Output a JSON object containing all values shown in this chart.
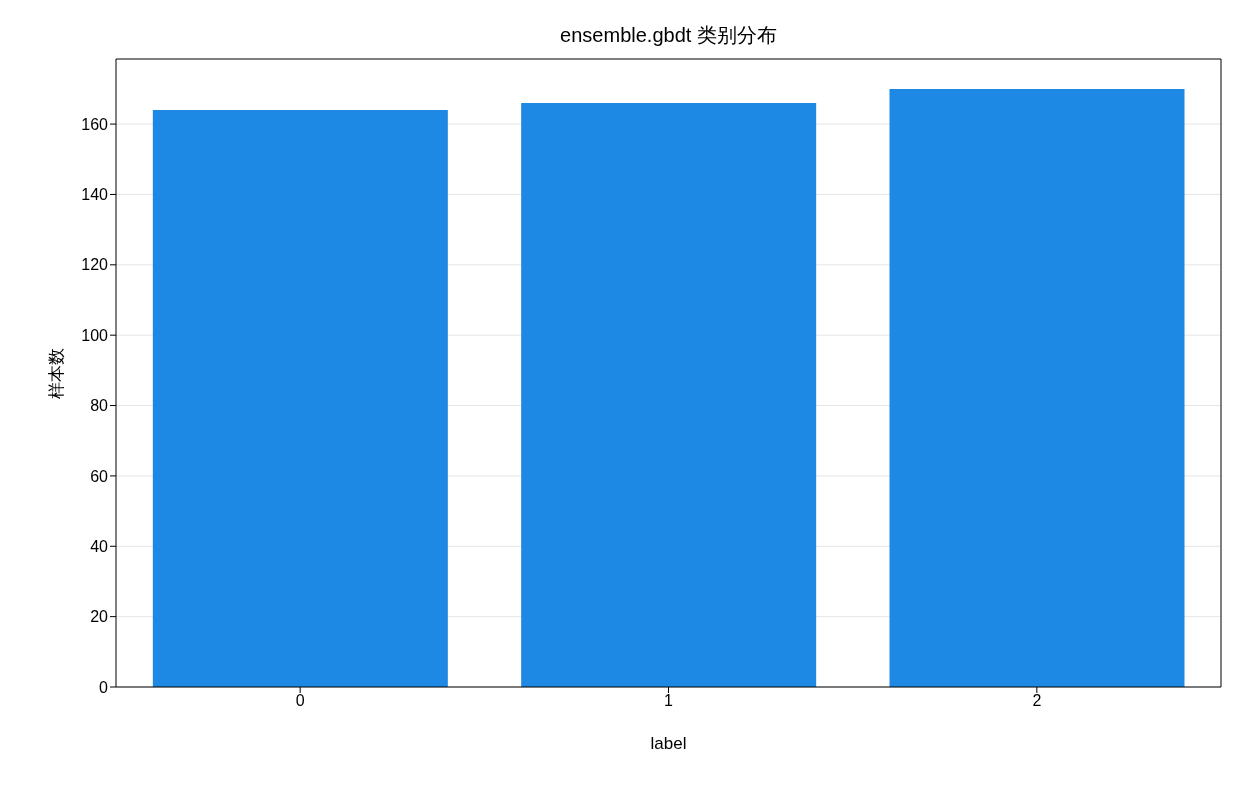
{
  "chart_data": {
    "type": "bar",
    "title": "ensemble.gbdt 类别分布",
    "xlabel": "label",
    "ylabel": "样本数",
    "categories": [
      "0",
      "1",
      "2"
    ],
    "values": [
      164,
      166,
      170
    ],
    "color": "#1e88e5",
    "ylim": [
      0,
      178.5
    ],
    "yticks": [
      0,
      20,
      40,
      60,
      80,
      100,
      120,
      140,
      160
    ],
    "grid": "y"
  }
}
